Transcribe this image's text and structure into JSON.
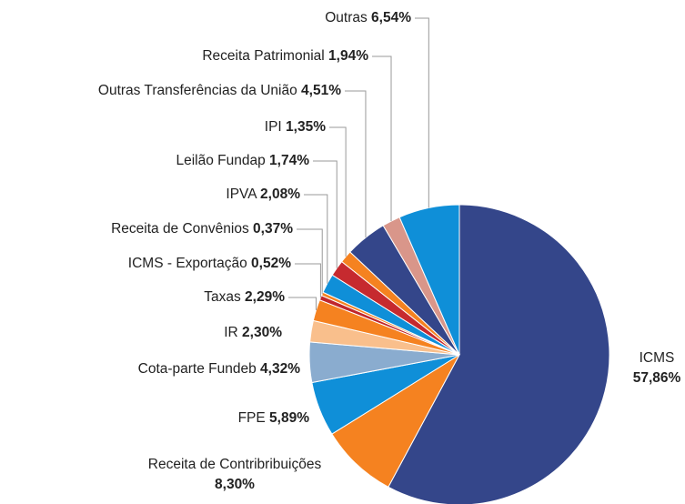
{
  "chart_data": {
    "type": "pie",
    "categories": [
      "ICMS",
      "Receita de Contribribuições",
      "FPE",
      "Cota-parte Fundeb",
      "IR",
      "Taxas",
      "ICMS - Exportação",
      "Receita de Convênios",
      "IPVA",
      "Leilão Fundap",
      "IPI",
      "Outras Transferências da União",
      "Receita Patrimonial",
      "Outras"
    ],
    "values": [
      57.86,
      8.3,
      5.89,
      4.32,
      2.3,
      2.29,
      0.52,
      0.37,
      2.08,
      1.74,
      1.35,
      4.51,
      1.94,
      6.54
    ],
    "value_labels": [
      "57,86%",
      "8,30%",
      "5,89%",
      "4,32%",
      "2,30%",
      "2,29%",
      "0,52%",
      "0,37%",
      "2,08%",
      "1,74%",
      "1,35%",
      "4,51%",
      "1,94%",
      "6,54%"
    ],
    "colors": [
      "#34468a",
      "#f58220",
      "#0f8fd8",
      "#8aaccf",
      "#f9bf8c",
      "#f58220",
      "#c0272d",
      "#f58220",
      "#0f8fd8",
      "#c62a2f",
      "#f58220",
      "#34468a",
      "#d9968a",
      "#0f8fd8"
    ]
  }
}
